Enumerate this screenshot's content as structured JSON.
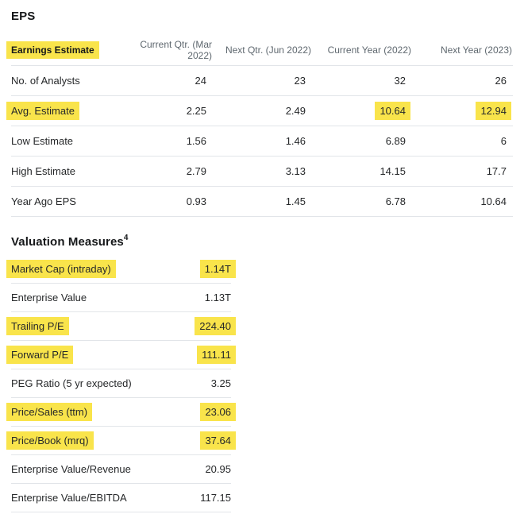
{
  "page": {
    "title": "EPS"
  },
  "colors": {
    "highlight": "#f9e44b",
    "row_border": "#e2e5e9",
    "header_text": "#5f686f",
    "body_text": "#26282a"
  },
  "earnings_table": {
    "header": {
      "label": "Earnings Estimate",
      "label_highlighted": true,
      "columns": [
        "Current Qtr. (Mar 2022)",
        "Next Qtr. (Jun 2022)",
        "Current Year (2022)",
        "Next Year (2023)"
      ]
    },
    "rows": [
      {
        "label": "No. of Analysts",
        "label_highlighted": false,
        "values": [
          "24",
          "23",
          "32",
          "26"
        ],
        "highlighted_value_indexes": []
      },
      {
        "label": "Avg. Estimate",
        "label_highlighted": true,
        "values": [
          "2.25",
          "2.49",
          "10.64",
          "12.94"
        ],
        "highlighted_value_indexes": [
          2,
          3
        ]
      },
      {
        "label": "Low Estimate",
        "label_highlighted": false,
        "values": [
          "1.56",
          "1.46",
          "6.89",
          "6"
        ],
        "highlighted_value_indexes": []
      },
      {
        "label": "High Estimate",
        "label_highlighted": false,
        "values": [
          "2.79",
          "3.13",
          "14.15",
          "17.7"
        ],
        "highlighted_value_indexes": []
      },
      {
        "label": "Year Ago EPS",
        "label_highlighted": false,
        "values": [
          "0.93",
          "1.45",
          "6.78",
          "10.64"
        ],
        "highlighted_value_indexes": []
      }
    ]
  },
  "valuation": {
    "title": "Valuation Measures",
    "footnote_marker": "4",
    "rows": [
      {
        "label": "Market Cap (intraday)",
        "value": "1.14T",
        "highlighted": true
      },
      {
        "label": "Enterprise Value",
        "value": "1.13T",
        "highlighted": false
      },
      {
        "label": "Trailing P/E",
        "value": "224.40",
        "highlighted": true
      },
      {
        "label": "Forward P/E",
        "value": "111.11",
        "highlighted": true
      },
      {
        "label": "PEG Ratio (5 yr expected)",
        "value": "3.25",
        "highlighted": false
      },
      {
        "label": "Price/Sales (ttm)",
        "value": "23.06",
        "highlighted": true
      },
      {
        "label": "Price/Book (mrq)",
        "value": "37.64",
        "highlighted": true
      },
      {
        "label": "Enterprise Value/Revenue",
        "value": "20.95",
        "highlighted": false
      },
      {
        "label": "Enterprise Value/EBITDA",
        "value": "117.15",
        "highlighted": false
      }
    ]
  }
}
